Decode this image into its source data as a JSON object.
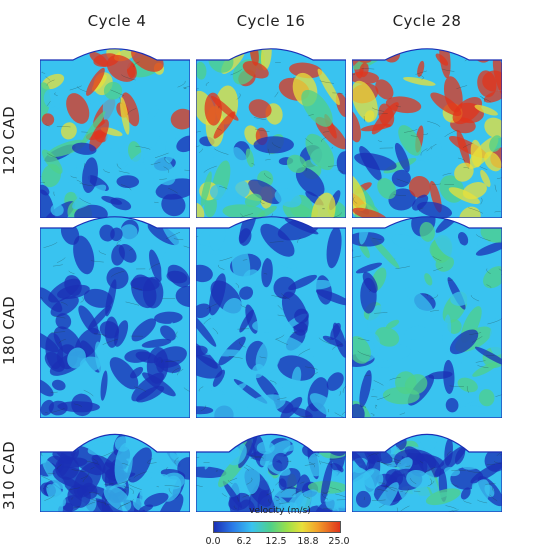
{
  "columns": [
    "Cycle 4",
    "Cycle 16",
    "Cycle 28"
  ],
  "rows": [
    "120 CAD",
    "180 CAD",
    "310 CAD"
  ],
  "colorbar": {
    "title": "velocity (m/s)",
    "ticks": [
      "0.0",
      "6.2",
      "12.5",
      "18.8",
      "25.0"
    ],
    "range": [
      0.0,
      25.0
    ]
  },
  "colors": {
    "low": "#1b2fb5",
    "mid_low": "#39c3f0",
    "mid": "#4fd08a",
    "mid_high": "#e8e03a",
    "high": "#e0341c"
  },
  "panels_intensity": [
    [
      0.35,
      0.55,
      0.75
    ],
    [
      0.18,
      0.22,
      0.4
    ],
    [
      0.28,
      0.3,
      0.32
    ]
  ]
}
